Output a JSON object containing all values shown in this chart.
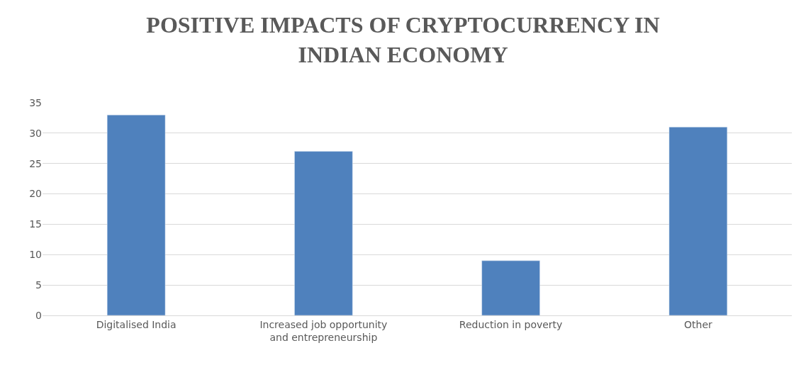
{
  "chart_data": {
    "type": "bar",
    "title": "POSITIVE IMPACTS OF CRYPTOCURRENCY IN INDIAN ECONOMY",
    "categories": [
      "Digitalised India",
      "Increased job opportunity and entrepreneurship",
      "Reduction in poverty",
      "Other"
    ],
    "values": [
      33,
      27,
      9,
      31
    ],
    "color": "#4f81bd",
    "ylim": [
      0,
      35
    ],
    "yticks": [
      0,
      5,
      10,
      15,
      20,
      25,
      30,
      35
    ],
    "grid": "y",
    "legend": false
  }
}
